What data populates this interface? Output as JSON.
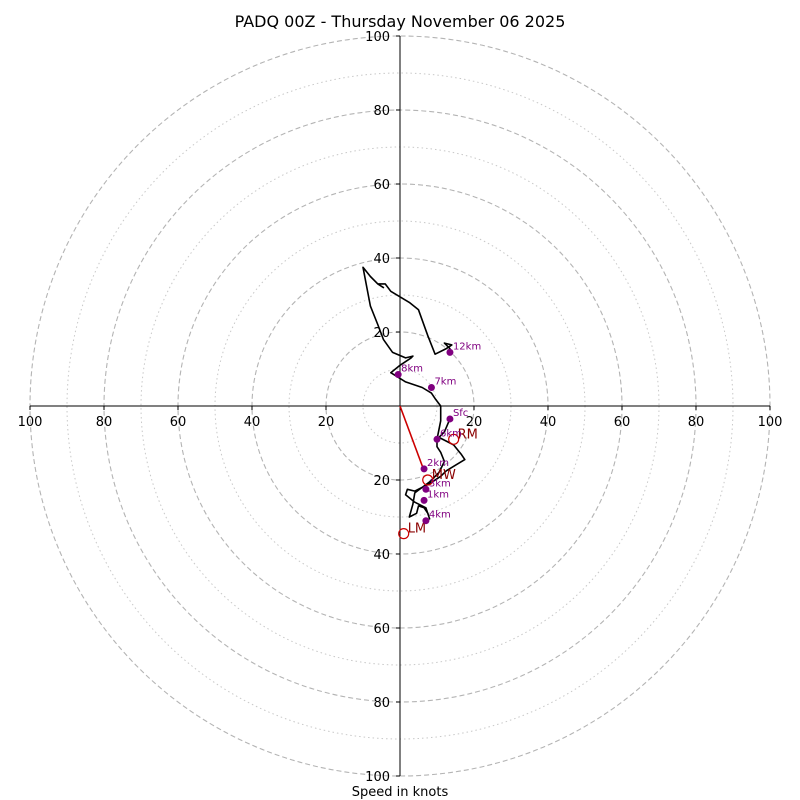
{
  "chart_data": {
    "type": "hodograph",
    "title": "PADQ 00Z - Thursday November 06 2025",
    "xlabel": "Speed in knots",
    "units": "knots",
    "range": [
      -100,
      100
    ],
    "ring_major": [
      20,
      40,
      60,
      80,
      100
    ],
    "ring_minor": [
      10,
      30,
      50,
      70,
      90
    ],
    "x_tick_values": [
      -100,
      -80,
      -60,
      -40,
      -20,
      20,
      40,
      60,
      80,
      100
    ],
    "x_tick_labels": [
      "100",
      "80",
      "60",
      "40",
      "20",
      "20",
      "40",
      "60",
      "80",
      "100"
    ],
    "y_tick_values": [
      -100,
      -80,
      -60,
      -40,
      -20,
      20,
      40,
      60,
      80,
      100
    ],
    "y_tick_labels": [
      "100",
      "80",
      "60",
      "40",
      "20",
      "20",
      "40",
      "60",
      "80",
      "100"
    ],
    "trace_color": "#000000",
    "marker_color": "#800080",
    "motion_color": "#cc0000",
    "motion_label_color": "#8b0000",
    "trace": [
      [
        13.5,
        -3.5
      ],
      [
        12,
        -7
      ],
      [
        10.5,
        -8.5
      ],
      [
        12.5,
        -9.5
      ],
      [
        14.5,
        -10.5
      ],
      [
        16.5,
        -13
      ],
      [
        17.5,
        -14.5
      ],
      [
        15,
        -16
      ],
      [
        12.5,
        -17.5
      ],
      [
        11,
        -19
      ],
      [
        8,
        -21
      ],
      [
        6,
        -22
      ],
      [
        4,
        -23
      ],
      [
        2,
        -22.5
      ],
      [
        1.5,
        -24
      ],
      [
        4,
        -26
      ],
      [
        7,
        -27.5
      ],
      [
        8,
        -30.5
      ],
      [
        7.5,
        -29
      ],
      [
        6.5,
        -27.5
      ],
      [
        5,
        -27
      ],
      [
        4.5,
        -29
      ],
      [
        2.5,
        -30
      ],
      [
        3.5,
        -26.5
      ],
      [
        4,
        -23.5
      ],
      [
        6,
        -22
      ],
      [
        8,
        -20.5
      ],
      [
        10.5,
        -18
      ],
      [
        12,
        -15
      ],
      [
        11,
        -12.5
      ],
      [
        10,
        -11
      ],
      [
        10,
        -9
      ],
      [
        11,
        -4
      ],
      [
        11,
        0
      ],
      [
        9.5,
        2
      ],
      [
        8.5,
        3.5
      ],
      [
        6,
        5
      ],
      [
        1.5,
        6.5
      ],
      [
        -2.5,
        9
      ],
      [
        0,
        11
      ],
      [
        3,
        13
      ],
      [
        3.5,
        13.5
      ],
      [
        1.5,
        13
      ],
      [
        -2,
        14.5
      ],
      [
        -4.5,
        18
      ],
      [
        -6,
        22
      ],
      [
        -8,
        27
      ],
      [
        -10,
        37.5
      ],
      [
        -8,
        35
      ],
      [
        -6,
        33
      ],
      [
        -4.5,
        32
      ],
      [
        -6,
        33
      ],
      [
        -4,
        33
      ],
      [
        -2.5,
        31
      ],
      [
        2.5,
        28
      ],
      [
        5,
        26
      ],
      [
        7.5,
        19
      ],
      [
        9.5,
        14
      ],
      [
        12.5,
        15.5
      ],
      [
        14,
        16.5
      ],
      [
        12,
        17
      ],
      [
        13.5,
        15.5
      ],
      [
        13,
        14.5
      ]
    ],
    "height_markers": [
      {
        "label": "Sfc",
        "u": 13.5,
        "v": -3.5
      },
      {
        "label": "1km",
        "u": 6.5,
        "v": -25.5
      },
      {
        "label": "2km",
        "u": 6.5,
        "v": -17
      },
      {
        "label": "3km",
        "u": 7,
        "v": -22.5
      },
      {
        "label": "4km",
        "u": 7,
        "v": -31
      },
      {
        "label": "6km",
        "u": 10,
        "v": -9
      },
      {
        "label": "7km",
        "u": 8.5,
        "v": 5
      },
      {
        "label": "8km",
        "u": -0.5,
        "v": 8.5
      },
      {
        "label": "12km",
        "u": 13.5,
        "v": 14.5
      }
    ],
    "storm_motion": [
      {
        "label": "RM",
        "u": 14.5,
        "v": -9
      },
      {
        "label": "MW",
        "u": 7.5,
        "v": -20
      },
      {
        "label": "LM",
        "u": 1,
        "v": -34.5
      }
    ],
    "shear_vector": {
      "from": [
        0,
        0
      ],
      "to": [
        6.5,
        -17.5
      ]
    }
  }
}
